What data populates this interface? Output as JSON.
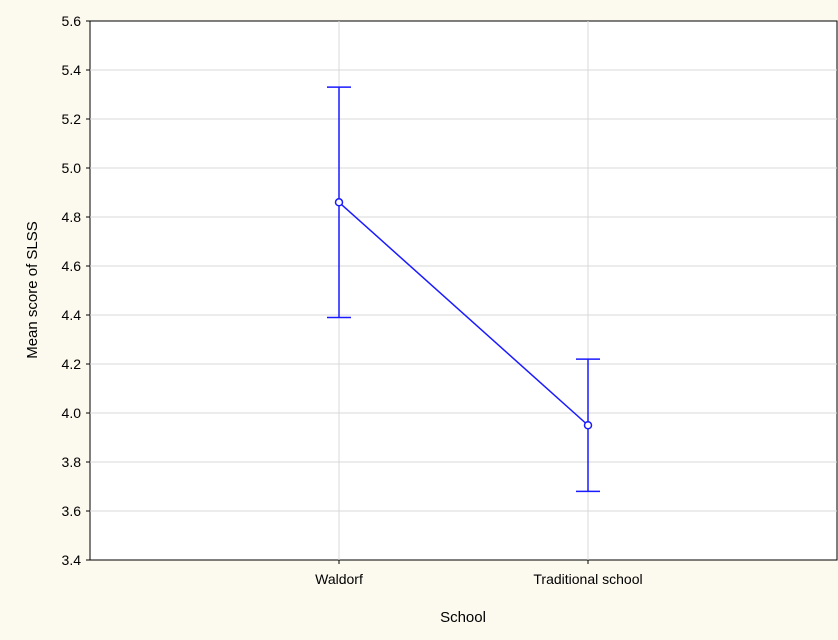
{
  "chart_data": {
    "type": "line",
    "title": "",
    "xlabel": "School",
    "ylabel": "Mean score of SLSS",
    "categories": [
      "Waldorf",
      "Traditional school"
    ],
    "series": [
      {
        "values": [
          4.86,
          3.95
        ],
        "error_low": [
          4.39,
          3.68
        ],
        "error_high": [
          5.33,
          4.22
        ]
      }
    ],
    "ylim": [
      3.4,
      5.6
    ],
    "yticks": [
      "3.4",
      "3.6",
      "3.8",
      "4.0",
      "4.2",
      "4.4",
      "4.6",
      "4.8",
      "5.0",
      "5.2",
      "5.4",
      "5.6"
    ],
    "grid": true,
    "colors": {
      "series": "#1a1aff",
      "grid": "#d9d9d9",
      "plot_background": "#ffffff",
      "page_background": "#fcf9ee"
    }
  }
}
